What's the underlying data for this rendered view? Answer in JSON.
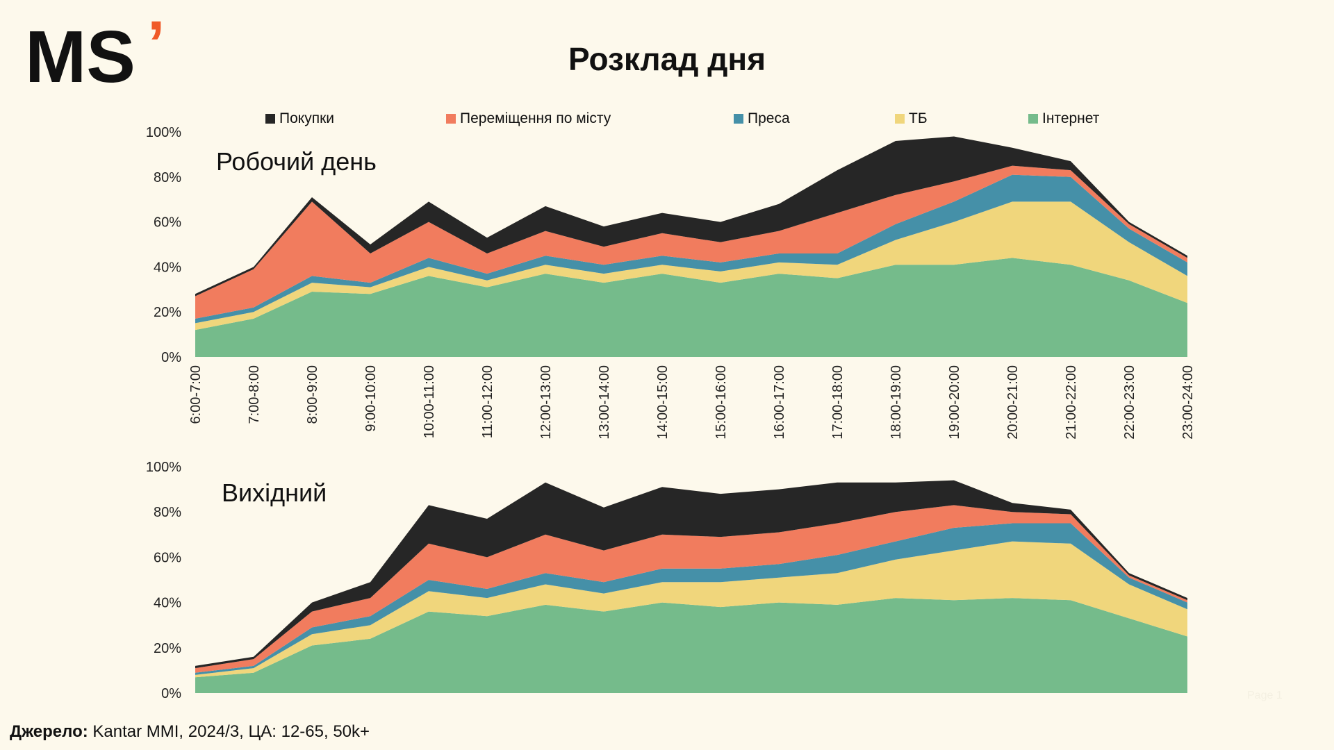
{
  "logo": {
    "text": "MS",
    "accent": "’"
  },
  "title": "Розклад дня",
  "legend": [
    {
      "name": "Покупки",
      "color": "#262626"
    },
    {
      "name": "Переміщення по місту",
      "color": "#f17c5e"
    },
    {
      "name": "Преса",
      "color": "#4590a8"
    },
    {
      "name": "ТБ",
      "color": "#f0d67c"
    },
    {
      "name": "Інтернет",
      "color": "#75bb8b"
    }
  ],
  "chart_data": [
    {
      "type": "area",
      "stacked": true,
      "title": "Робочий день",
      "ylim": [
        0,
        100
      ],
      "yticks": [
        "0%",
        "20%",
        "40%",
        "60%",
        "80%",
        "100%"
      ],
      "categories": [
        "6:00-7:00",
        "7:00-8:00",
        "8:00-9:00",
        "9:00-10:00",
        "10:00-11:00",
        "11:00-12:00",
        "12:00-13:00",
        "13:00-14:00",
        "14:00-15:00",
        "15:00-16:00",
        "16:00-17:00",
        "17:00-18:00",
        "18:00-19:00",
        "19:00-20:00",
        "20:00-21:00",
        "21:00-22:00",
        "22:00-23:00",
        "23:00-24:00"
      ],
      "series": [
        {
          "name": "Інтернет",
          "values": [
            12,
            17,
            29,
            28,
            36,
            31,
            37,
            33,
            37,
            33,
            37,
            35,
            41,
            41,
            44,
            41,
            34,
            24
          ]
        },
        {
          "name": "ТБ",
          "values": [
            3,
            3,
            4,
            3,
            4,
            3,
            4,
            4,
            4,
            5,
            5,
            6,
            11,
            19,
            25,
            28,
            17,
            12
          ]
        },
        {
          "name": "Преса",
          "values": [
            2,
            2,
            3,
            2,
            4,
            3,
            4,
            4,
            4,
            4,
            4,
            5,
            7,
            9,
            12,
            11,
            6,
            6
          ]
        },
        {
          "name": "Переміщення по місту",
          "values": [
            10,
            17,
            33,
            13,
            16,
            9,
            11,
            8,
            10,
            9,
            10,
            18,
            13,
            9,
            4,
            3,
            2,
            2
          ]
        },
        {
          "name": "Покупки",
          "values": [
            1,
            1,
            2,
            4,
            9,
            7,
            11,
            9,
            9,
            9,
            12,
            19,
            24,
            20,
            8,
            4,
            1,
            1
          ]
        }
      ]
    },
    {
      "type": "area",
      "stacked": true,
      "title": "Вихідний",
      "ylim": [
        0,
        100
      ],
      "yticks": [
        "0%",
        "20%",
        "40%",
        "60%",
        "80%",
        "100%"
      ],
      "categories": [
        "6:00-7:00",
        "7:00-8:00",
        "8:00-9:00",
        "9:00-10:00",
        "10:00-11:00",
        "11:00-12:00",
        "12:00-13:00",
        "13:00-14:00",
        "14:00-15:00",
        "15:00-16:00",
        "16:00-17:00",
        "17:00-18:00",
        "18:00-19:00",
        "19:00-20:00",
        "20:00-21:00",
        "21:00-22:00",
        "22:00-23:00",
        "23:00-24:00"
      ],
      "series": [
        {
          "name": "Інтернет",
          "values": [
            7,
            9,
            21,
            24,
            36,
            34,
            39,
            36,
            40,
            38,
            40,
            39,
            42,
            41,
            42,
            41,
            33,
            25
          ]
        },
        {
          "name": "ТБ",
          "values": [
            1,
            2,
            5,
            6,
            9,
            8,
            9,
            8,
            9,
            11,
            11,
            14,
            17,
            22,
            25,
            25,
            15,
            12
          ]
        },
        {
          "name": "Преса",
          "values": [
            1,
            1,
            3,
            4,
            5,
            4,
            5,
            5,
            6,
            6,
            6,
            8,
            8,
            10,
            8,
            9,
            3,
            3
          ]
        },
        {
          "name": "Переміщення по місту",
          "values": [
            2,
            3,
            7,
            8,
            16,
            14,
            17,
            14,
            15,
            14,
            14,
            14,
            13,
            10,
            5,
            4,
            1,
            1
          ]
        },
        {
          "name": "Покупки",
          "values": [
            1,
            1,
            4,
            7,
            17,
            17,
            23,
            19,
            21,
            19,
            19,
            18,
            13,
            11,
            4,
            2,
            1,
            1
          ]
        }
      ]
    }
  ],
  "source": {
    "label": "Джерело:",
    "text": " Kantar MMI, 2024/3, ЦА: 12-65, 50k+"
  },
  "page_number": "Page 1"
}
